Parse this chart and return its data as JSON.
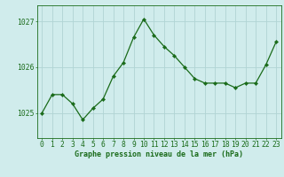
{
  "x": [
    0,
    1,
    2,
    3,
    4,
    5,
    6,
    7,
    8,
    9,
    10,
    11,
    12,
    13,
    14,
    15,
    16,
    17,
    18,
    19,
    20,
    21,
    22,
    23
  ],
  "y": [
    1025.0,
    1025.4,
    1025.4,
    1025.2,
    1024.85,
    1025.1,
    1025.3,
    1025.8,
    1026.1,
    1026.65,
    1027.05,
    1026.7,
    1026.45,
    1026.25,
    1026.0,
    1025.75,
    1025.65,
    1025.65,
    1025.65,
    1025.55,
    1025.65,
    1025.65,
    1026.05,
    1026.55
  ],
  "line_color": "#1a6b1a",
  "marker": "D",
  "marker_size": 2.2,
  "bg_color": "#d0ecec",
  "grid_color": "#b0d4d4",
  "xlabel": "Graphe pression niveau de la mer (hPa)",
  "xlabel_fontsize": 6.0,
  "ylabel_ticks": [
    1025,
    1026,
    1027
  ],
  "ylim": [
    1024.45,
    1027.35
  ],
  "xlim": [
    -0.5,
    23.5
  ],
  "tick_fontsize": 5.8,
  "axis_label_color": "#1a6b1a",
  "tick_color": "#1a6b1a"
}
